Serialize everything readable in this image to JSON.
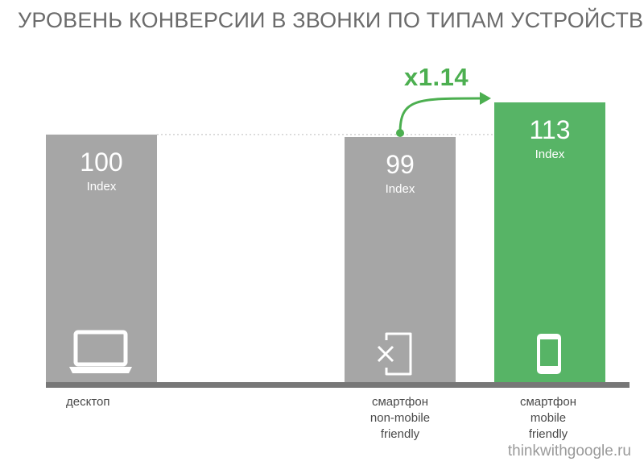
{
  "title": "УРОВЕНЬ КОНВЕРСИИ В ЗВОНКИ ПО ТИПАМ УСТРОЙСТВ",
  "footer": "thinkwithgoogle.ru",
  "multiplier": "x1.14",
  "colors": {
    "bar_grey": "#a6a6a6",
    "bar_green": "#57b466",
    "baseline": "#777777",
    "accent": "#4caf50"
  },
  "chart_data": {
    "type": "bar",
    "title": "УРОВЕНЬ КОНВЕРСИИ В ЗВОНКИ ПО ТИПАМ УСТРОЙСТВ",
    "categories": [
      "десктоп",
      "смартфон non-mobile friendly",
      "смартфон mobile friendly"
    ],
    "category_label_lines": [
      [
        "десктоп"
      ],
      [
        "смартфон",
        "non-mobile",
        "friendly"
      ],
      [
        "смартфон",
        "mobile",
        "friendly"
      ]
    ],
    "values": [
      100,
      99,
      113
    ],
    "value_unit": "Index",
    "icons": [
      "laptop-icon",
      "phone-crossed-icon",
      "smartphone-icon"
    ],
    "highlight_index": 2,
    "ylim": [
      0,
      113
    ],
    "grid": false
  }
}
